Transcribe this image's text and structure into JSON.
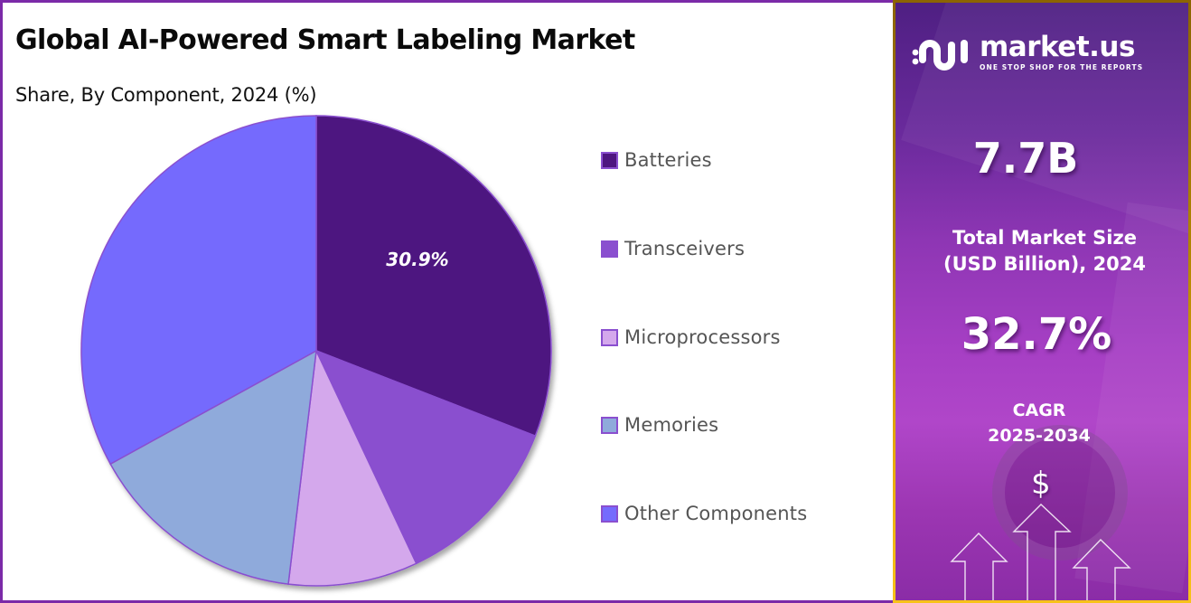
{
  "header": {
    "title": "Global AI-Powered Smart Labeling Market",
    "subtitle": "Share, By Component, 2024 (%)"
  },
  "chart_data": {
    "type": "pie",
    "title": "Global AI-Powered Smart Labeling Market",
    "subtitle": "Share, By Component, 2024 (%)",
    "categories": [
      "Batteries",
      "Transceivers",
      "Microprocessors",
      "Memories",
      "Other Components"
    ],
    "values": [
      30.9,
      12.1,
      8.9,
      15.1,
      33.0
    ],
    "colors": [
      "#4E1680",
      "#8A4FCF",
      "#D4A8EC",
      "#8FAADB",
      "#756BFD"
    ],
    "data_labels": [
      {
        "category": "Batteries",
        "text": "30.9%"
      }
    ],
    "start_angle_deg": 0,
    "direction": "clockwise",
    "legend_position": "right",
    "slice_border_color": "#8A4FCF"
  },
  "legend": {
    "items": [
      {
        "label": "Batteries",
        "color": "#4E1680"
      },
      {
        "label": "Transceivers",
        "color": "#8A4FCF"
      },
      {
        "label": "Microprocessors",
        "color": "#D4A8EC"
      },
      {
        "label": "Memories",
        "color": "#8FAADB"
      },
      {
        "label": "Other Components",
        "color": "#756BFD"
      }
    ]
  },
  "sidebar": {
    "brand": {
      "name": "market.us",
      "tagline": "ONE STOP SHOP FOR THE REPORTS",
      "icon": "market-us-logo-icon"
    },
    "market_size": {
      "value": "7.7B",
      "label_line1": "Total Market Size",
      "label_line2": "(USD Billion), 2024"
    },
    "cagr": {
      "value": "32.7%",
      "label_line1": "CAGR",
      "label_line2": "2025-2034"
    },
    "decor": {
      "dollar_symbol": "$",
      "icon": "growth-arrows-icon"
    }
  },
  "colors": {
    "left_border": "#7B2AA8",
    "right_border_top": "#8C6400",
    "right_border_bottom": "#F7C21A",
    "panel_gradient_top": "#4E1F82",
    "panel_gradient_mid": "#A63FC4"
  }
}
